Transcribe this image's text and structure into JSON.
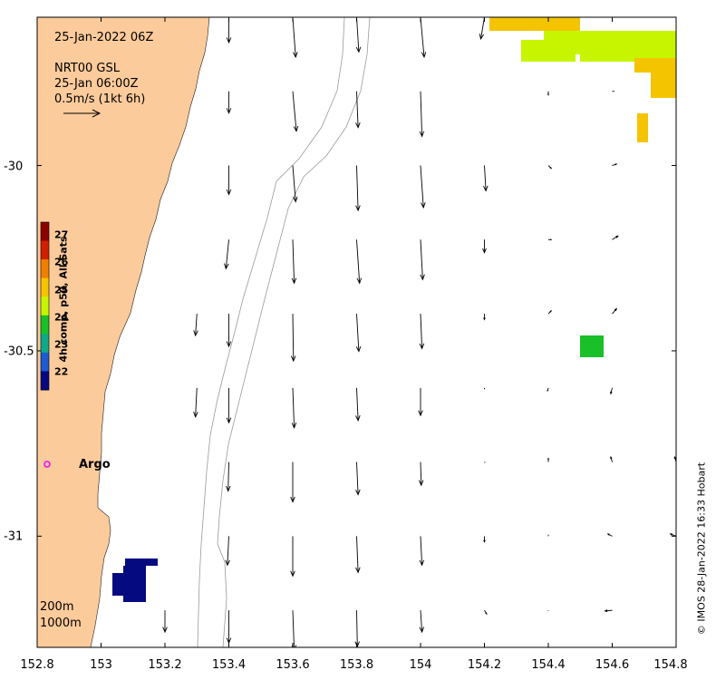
{
  "map": {
    "title": "25-Jan-2022 06Z",
    "product": "NRT00 GSL",
    "vector_time": "25-Jan 06:00Z",
    "scale_label": "0.5m/s (1kt 6h)",
    "depth_contours": [
      "200m",
      "1000m"
    ],
    "argo_label": "Argo",
    "credit": "© IMOS 28-Jan-2022 16:33 Hobart",
    "x_ticks": [
      "152.8",
      "153",
      "153.2",
      "153.4",
      "153.6",
      "153.8",
      "154",
      "154.2",
      "154.4",
      "154.6",
      "154.8"
    ],
    "y_ticks": [
      "-30",
      "-30.5",
      "-31"
    ],
    "lon_range": [
      152.8,
      154.8
    ],
    "lat_range": [
      -29.6,
      -31.3
    ],
    "colorbar": {
      "label": "4h comp, p50, All Sats",
      "ticks": [
        "27",
        "26",
        "25",
        "24",
        "23",
        "22"
      ],
      "range": [
        21.5,
        27.5
      ]
    },
    "colors": {
      "land": "#fccb9b",
      "sst_warm": "#f5c400",
      "sst_mid": "#c7f500",
      "sst_green": "#19c02a",
      "sst_cold": "#050a80",
      "argo": "#ff00ff"
    },
    "currents": {
      "lon_step": 0.2,
      "lat_step": 0.1,
      "vectors": [
        {
          "lat": -29.6,
          "lons": [
            153.4,
            153.6,
            153.8,
            154.0,
            154.2
          ],
          "u": [
            0.0,
            0.04,
            0.03,
            0.05,
            -0.05
          ],
          "v": [
            -0.35,
            -0.55,
            -0.48,
            -0.55,
            -0.3
          ]
        },
        {
          "lat": -29.8,
          "lons": [
            153.4,
            153.6,
            153.8,
            154.0,
            154.4,
            154.6
          ],
          "u": [
            0.0,
            0.05,
            0.02,
            0.02,
            0.0,
            0.03
          ],
          "v": [
            -0.3,
            -0.55,
            -0.5,
            -0.62,
            -0.05,
            0.0
          ]
        },
        {
          "lat": -30.0,
          "lons": [
            153.4,
            153.6,
            153.8,
            154.0,
            154.2,
            154.4,
            154.6
          ],
          "u": [
            0.0,
            0.04,
            0.02,
            0.04,
            0.02,
            0.04,
            0.06
          ],
          "v": [
            -0.4,
            -0.5,
            -0.62,
            -0.58,
            -0.35,
            -0.04,
            0.02
          ]
        },
        {
          "lat": -30.2,
          "lons": [
            153.4,
            153.6,
            153.8,
            154.0,
            154.2,
            154.4,
            154.6
          ],
          "u": [
            -0.04,
            0.02,
            0.04,
            0.03,
            0.0,
            0.04,
            0.08
          ],
          "v": [
            -0.4,
            -0.6,
            -0.6,
            -0.55,
            -0.18,
            0.0,
            0.05
          ]
        },
        {
          "lat": -30.4,
          "lons": [
            153.3,
            153.4,
            153.6,
            153.8,
            154.0,
            154.2,
            154.4,
            154.6
          ],
          "u": [
            -0.02,
            0.0,
            0.01,
            0.03,
            0.02,
            0.0,
            0.04,
            0.06
          ],
          "v": [
            -0.3,
            -0.45,
            -0.65,
            -0.52,
            -0.48,
            -0.08,
            0.04,
            0.07
          ]
        },
        {
          "lat": -30.6,
          "lons": [
            153.3,
            153.4,
            153.6,
            153.8,
            154.0,
            154.2,
            154.4,
            154.6
          ],
          "u": [
            -0.02,
            0.0,
            0.02,
            0.02,
            0.0,
            0.0,
            -0.01,
            -0.02
          ],
          "v": [
            -0.4,
            -0.48,
            -0.55,
            -0.45,
            -0.38,
            -0.02,
            -0.04,
            -0.08
          ]
        },
        {
          "lat": -30.8,
          "lons": [
            153.4,
            153.6,
            153.8,
            154.0,
            154.2,
            154.4,
            154.6,
            154.8
          ],
          "u": [
            -0.01,
            0.0,
            0.02,
            0.01,
            0.01,
            0.0,
            -0.02,
            -0.02
          ],
          "v": [
            -0.4,
            -0.55,
            -0.45,
            -0.32,
            -0.01,
            0.05,
            0.07,
            0.07
          ]
        },
        {
          "lat": -31.0,
          "lons": [
            153.4,
            153.6,
            153.8,
            154.0,
            154.2,
            154.4,
            154.6,
            154.8
          ],
          "u": [
            -0.02,
            0.0,
            0.02,
            0.02,
            0.0,
            0.0,
            -0.06,
            -0.08
          ],
          "v": [
            -0.4,
            -0.55,
            -0.5,
            -0.4,
            -0.08,
            0.02,
            0.03,
            0.03
          ]
        },
        {
          "lat": -31.2,
          "lons": [
            153.2,
            153.4,
            153.6,
            153.8,
            154.0,
            154.2,
            154.4,
            154.6
          ],
          "u": [
            0.0,
            0.0,
            0.02,
            0.01,
            0.02,
            0.03,
            0.0,
            -0.1
          ],
          "v": [
            -0.3,
            -0.45,
            -0.55,
            -0.5,
            -0.3,
            -0.05,
            -0.01,
            -0.01
          ]
        }
      ]
    }
  }
}
